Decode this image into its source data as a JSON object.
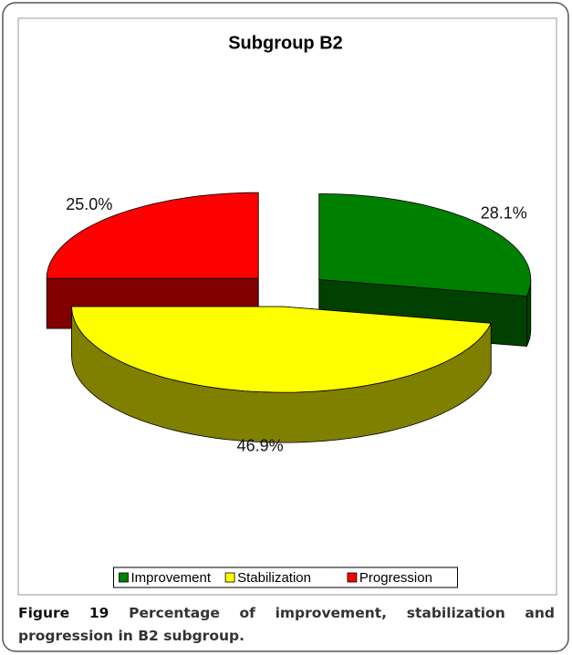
{
  "chart_data": {
    "type": "pie3d",
    "title": "Subgroup B2",
    "categories": [
      "Improvement",
      "Stabilization",
      "Progression"
    ],
    "values": [
      28.1,
      46.9,
      25.0
    ],
    "value_labels": [
      "28.1%",
      "46.9%",
      "25.0%"
    ],
    "colors": [
      "#008000",
      "#ffff00",
      "#ff0000"
    ],
    "legend": "bottom"
  },
  "caption": {
    "label": "Figure 19",
    "text": "Percentage of improvement, stabilization and progression in B2 subgroup."
  }
}
